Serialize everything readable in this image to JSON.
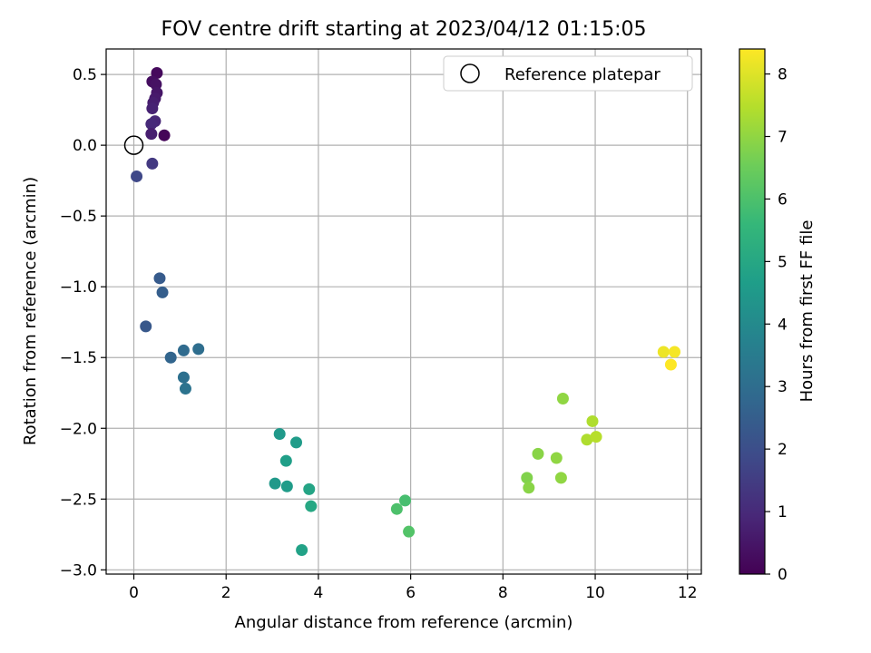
{
  "chart_data": {
    "type": "scatter",
    "title": "FOV centre drift starting at 2023/04/12 01:15:05",
    "xlabel": "Angular distance from reference (arcmin)",
    "ylabel": "Rotation from reference (arcmin)",
    "xlim": [
      -0.6,
      12.3
    ],
    "ylim": [
      -3.03,
      0.68
    ],
    "xticks": [
      0,
      2,
      4,
      6,
      8,
      10,
      12
    ],
    "xtick_labels": [
      "0",
      "2",
      "4",
      "6",
      "8",
      "10",
      "12"
    ],
    "yticks": [
      -3.0,
      -2.5,
      -2.0,
      -1.5,
      -1.0,
      -0.5,
      0.0,
      0.5
    ],
    "ytick_labels": [
      "−3.0",
      "−2.5",
      "−2.0",
      "−1.5",
      "−1.0",
      "−0.5",
      "0.0",
      "0.5"
    ],
    "grid": true,
    "legend": {
      "position": "top-right",
      "entries": [
        "Reference platepar"
      ]
    },
    "reference_point": {
      "x": 0.0,
      "y": 0.0
    },
    "colorbar": {
      "label": "Hours from first FF file",
      "range": [
        0,
        8.4
      ],
      "ticks": [
        0,
        1,
        2,
        3,
        4,
        5,
        6,
        7,
        8
      ],
      "tick_labels": [
        "0",
        "1",
        "2",
        "3",
        "4",
        "5",
        "6",
        "7",
        "8"
      ],
      "colormap": "viridis"
    },
    "points": [
      {
        "x": 0.5,
        "y": 0.51,
        "c": 0.2
      },
      {
        "x": 0.4,
        "y": 0.45,
        "c": 0.3
      },
      {
        "x": 0.48,
        "y": 0.43,
        "c": 0.4
      },
      {
        "x": 0.5,
        "y": 0.37,
        "c": 0.5
      },
      {
        "x": 0.46,
        "y": 0.33,
        "c": 0.6
      },
      {
        "x": 0.42,
        "y": 0.3,
        "c": 0.7
      },
      {
        "x": 0.4,
        "y": 0.26,
        "c": 0.8
      },
      {
        "x": 0.46,
        "y": 0.17,
        "c": 0.9
      },
      {
        "x": 0.38,
        "y": 0.15,
        "c": 1.0
      },
      {
        "x": 0.38,
        "y": 0.08,
        "c": 0.7
      },
      {
        "x": 0.66,
        "y": 0.07,
        "c": 0.1
      },
      {
        "x": 0.4,
        "y": -0.13,
        "c": 1.4
      },
      {
        "x": 0.06,
        "y": -0.22,
        "c": 1.8
      },
      {
        "x": 0.56,
        "y": -0.94,
        "c": 2.4
      },
      {
        "x": 0.62,
        "y": -1.04,
        "c": 2.5
      },
      {
        "x": 0.26,
        "y": -1.28,
        "c": 2.3
      },
      {
        "x": 1.08,
        "y": -1.45,
        "c": 2.9
      },
      {
        "x": 1.4,
        "y": -1.44,
        "c": 3.0
      },
      {
        "x": 0.8,
        "y": -1.5,
        "c": 2.7
      },
      {
        "x": 1.08,
        "y": -1.64,
        "c": 3.1
      },
      {
        "x": 1.12,
        "y": -1.72,
        "c": 3.2
      },
      {
        "x": 3.16,
        "y": -2.04,
        "c": 4.5
      },
      {
        "x": 3.52,
        "y": -2.1,
        "c": 4.6
      },
      {
        "x": 3.3,
        "y": -2.23,
        "c": 4.7
      },
      {
        "x": 3.06,
        "y": -2.39,
        "c": 4.5
      },
      {
        "x": 3.32,
        "y": -2.41,
        "c": 4.6
      },
      {
        "x": 3.8,
        "y": -2.43,
        "c": 4.9
      },
      {
        "x": 3.84,
        "y": -2.55,
        "c": 5.0
      },
      {
        "x": 3.64,
        "y": -2.86,
        "c": 4.8
      },
      {
        "x": 5.88,
        "y": -2.51,
        "c": 5.9
      },
      {
        "x": 5.7,
        "y": -2.57,
        "c": 6.0
      },
      {
        "x": 5.96,
        "y": -2.73,
        "c": 6.1
      },
      {
        "x": 9.3,
        "y": -1.79,
        "c": 7.0
      },
      {
        "x": 8.76,
        "y": -2.18,
        "c": 6.9
      },
      {
        "x": 9.16,
        "y": -2.21,
        "c": 7.0
      },
      {
        "x": 8.52,
        "y": -2.35,
        "c": 6.8
      },
      {
        "x": 9.26,
        "y": -2.35,
        "c": 7.0
      },
      {
        "x": 8.56,
        "y": -2.42,
        "c": 6.9
      },
      {
        "x": 9.94,
        "y": -1.95,
        "c": 7.4
      },
      {
        "x": 9.82,
        "y": -2.08,
        "c": 7.4
      },
      {
        "x": 10.02,
        "y": -2.06,
        "c": 7.5
      },
      {
        "x": 11.48,
        "y": -1.46,
        "c": 8.2
      },
      {
        "x": 11.72,
        "y": -1.46,
        "c": 8.3
      },
      {
        "x": 11.64,
        "y": -1.55,
        "c": 8.4
      }
    ]
  }
}
